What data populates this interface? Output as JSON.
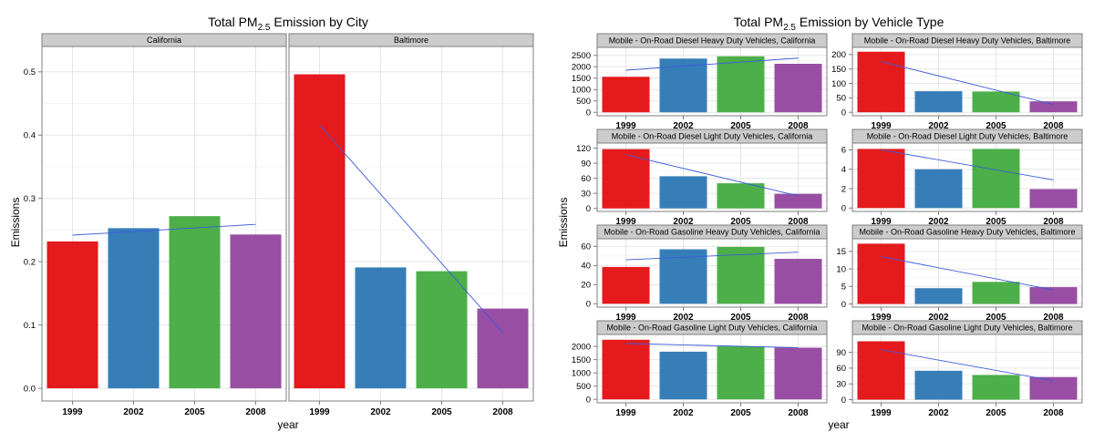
{
  "colors": {
    "1999": "#e41a1c",
    "2002": "#377eb8",
    "2005": "#4daf4a",
    "2008": "#984ea3",
    "trend": "#3b5bdb",
    "strip_bg": "#cccccc",
    "grid": "#e6e6e6"
  },
  "chart_data": [
    {
      "type": "bar",
      "title_main": "Total PM",
      "title_sub": "2.5",
      "title_rest": " Emission by City",
      "xlabel": "year",
      "ylabel": "Emissions",
      "categories": [
        "1999",
        "2002",
        "2005",
        "2008"
      ],
      "ylim": [
        -0.02,
        0.54
      ],
      "yticks": [
        0.0,
        0.1,
        0.2,
        0.3,
        0.4,
        0.5
      ],
      "ytick_labels": [
        "0.0",
        "0.1",
        "0.2",
        "0.3",
        "0.4",
        "0.5"
      ],
      "grid": true,
      "facets": [
        {
          "label": "California",
          "values": [
            0.232,
            0.253,
            0.272,
            0.243
          ],
          "trend": [
            0.242,
            0.259
          ]
        },
        {
          "label": "Baltimore",
          "values": [
            0.496,
            0.191,
            0.185,
            0.126
          ],
          "trend": [
            0.416,
            0.088
          ]
        }
      ]
    },
    {
      "type": "bar",
      "title_main": "Total PM",
      "title_sub": "2.5",
      "title_rest": " Emission by Vehicle Type",
      "xlabel": "year",
      "ylabel": "Emissions",
      "categories": [
        "1999",
        "2002",
        "2005",
        "2008"
      ],
      "grid": true,
      "facets": [
        {
          "label": "Mobile - On-Road Diesel Heavy Duty Vehicles, California",
          "values": [
            1560,
            2360,
            2460,
            2130
          ],
          "trend": [
            1850,
            2380
          ],
          "ylim": [
            -150,
            2850
          ],
          "yticks": [
            0,
            500,
            1000,
            1500,
            2000,
            2500
          ],
          "ytick_labels": [
            "0",
            "500",
            "1000",
            "1500",
            "2000",
            "2500"
          ]
        },
        {
          "label": "Mobile - On-Road Diesel Heavy Duty Vehicles, Baltimore",
          "values": [
            210,
            73,
            72,
            38
          ],
          "trend": [
            176,
            27
          ],
          "ylim": [
            -12,
            225
          ],
          "yticks": [
            0,
            50,
            100,
            150,
            200
          ],
          "ytick_labels": [
            "0",
            "50",
            "100",
            "150",
            "200"
          ]
        },
        {
          "label": "Mobile - On-Road Diesel Light Duty Vehicles, California",
          "values": [
            118,
            64,
            50,
            29
          ],
          "trend": [
            107,
            25
          ],
          "ylim": [
            -6,
            130
          ],
          "yticks": [
            0,
            30,
            60,
            90,
            120
          ],
          "ytick_labels": [
            "0",
            "30",
            "60",
            "90",
            "120"
          ]
        },
        {
          "label": "Mobile - On-Road Diesel Light Duty Vehicles, Baltimore",
          "values": [
            6.1,
            4.0,
            6.1,
            1.95
          ],
          "trend": [
            6.0,
            2.9
          ],
          "ylim": [
            -0.35,
            6.7
          ],
          "yticks": [
            0,
            2,
            4,
            6
          ],
          "ytick_labels": [
            "0",
            "2",
            "4",
            "6"
          ]
        },
        {
          "label": "Mobile - On-Road Gasoline Heavy Duty Vehicles, California",
          "values": [
            38.5,
            57,
            59.5,
            47
          ],
          "trend": [
            46,
            54
          ],
          "ylim": [
            -3.5,
            68
          ],
          "yticks": [
            0,
            20,
            40,
            60
          ],
          "ytick_labels": [
            "0",
            "20",
            "40",
            "60"
          ]
        },
        {
          "label": "Mobile - On-Road Gasoline Heavy Duty Vehicles, Baltimore",
          "values": [
            17.2,
            4.5,
            6.3,
            4.8
          ],
          "trend": [
            13.5,
            4.0
          ],
          "ylim": [
            -0.9,
            18.6
          ],
          "yticks": [
            0,
            5,
            10,
            15
          ],
          "ytick_labels": [
            "0",
            "5",
            "10",
            "15"
          ]
        },
        {
          "label": "Mobile - On-Road Gasoline Light Duty Vehicles, California",
          "values": [
            2250,
            1800,
            2000,
            1950
          ],
          "trend": [
            2110,
            1950
          ],
          "ylim": [
            -130,
            2450
          ],
          "yticks": [
            0,
            500,
            1000,
            1500,
            2000
          ],
          "ytick_labels": [
            "0",
            "500",
            "1000",
            "1500",
            "2000"
          ]
        },
        {
          "label": "Mobile - On-Road Gasoline Light Duty Vehicles, Baltimore",
          "values": [
            111,
            55,
            47,
            43
          ],
          "trend": [
            95,
            36
          ],
          "ylim": [
            -6,
            124
          ],
          "yticks": [
            0,
            30,
            60,
            90
          ],
          "ytick_labels": [
            "0",
            "30",
            "60",
            "90"
          ]
        }
      ]
    }
  ]
}
